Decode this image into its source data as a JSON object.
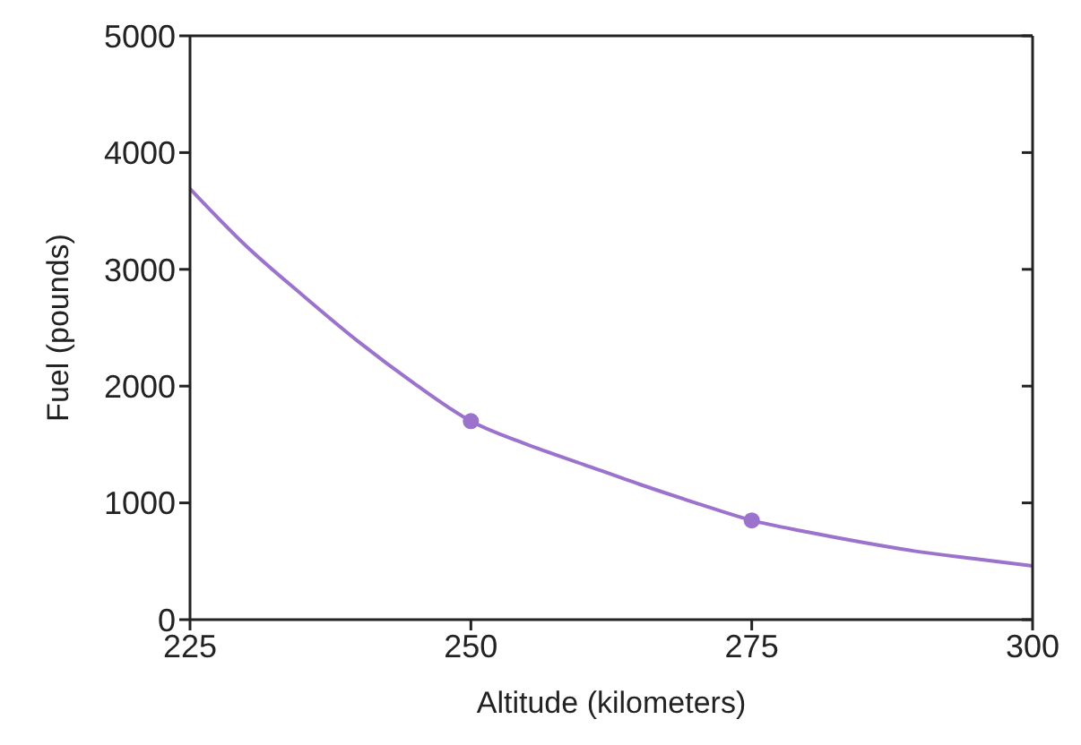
{
  "chart_data": {
    "type": "line",
    "xlabel": "Altitude (kilometers)",
    "ylabel": "Fuel (pounds)",
    "series": [
      {
        "color": "#9b72cc",
        "x": [
          225,
          230,
          235,
          240,
          245,
          250,
          255,
          260,
          265,
          270,
          275,
          280,
          285,
          290,
          295,
          300
        ],
        "values": [
          3690,
          3200,
          2780,
          2380,
          2020,
          1700,
          1500,
          1330,
          1160,
          1000,
          850,
          750,
          660,
          580,
          520,
          460
        ],
        "marker": "none"
      },
      {
        "type": "scatter",
        "color": "#9b72cc",
        "x": [
          250,
          275
        ],
        "values": [
          1700,
          850
        ],
        "marker": "circle"
      }
    ],
    "xlim": [
      225,
      300
    ],
    "xticks": [
      225,
      250,
      275,
      300
    ],
    "ylim": [
      0,
      5000
    ],
    "yticks": [
      0,
      1000,
      2000,
      3000,
      4000,
      5000
    ],
    "grid": false
  }
}
